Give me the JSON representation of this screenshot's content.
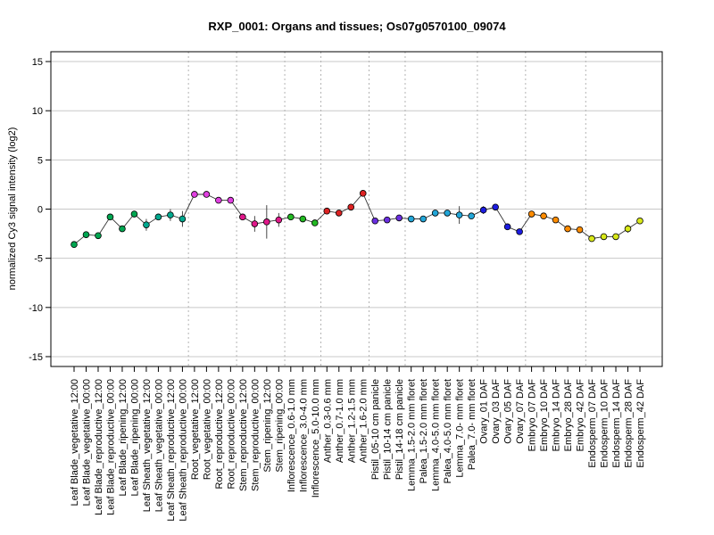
{
  "chart_data": {
    "type": "line",
    "title": "RXP_0001: Organs and tissues; Os07g0570100_09074",
    "xlabel": "",
    "ylabel": "normalized Cy3 signal intensity (log2)",
    "ylim": [
      -16,
      16
    ],
    "yticks": [
      15,
      10,
      5,
      0,
      -5,
      -10,
      -15
    ],
    "grid": "horizontal gridlines at y ticks; dotted vertical separators between tissue groups",
    "legend": "none",
    "categories": [
      "Leaf Blade_vegetative_12:00",
      "Leaf Blade_vegetative_00:00",
      "Leaf Blade_reproductive_12:00",
      "Leaf Blade_reproductive_00:00",
      "Leaf Blade_ripening_12:00",
      "Leaf Blade_ripening_00:00",
      "Leaf Sheath_vegetative_12:00",
      "Leaf Sheath_vegetative_00:00",
      "Leaf Sheath_reproductive_12:00",
      "Leaf Sheath_reproductive_00:00",
      "Root_vegetative_12:00",
      "Root_vegetative_00:00",
      "Root_reproductive_12:00",
      "Root_reproductive_00:00",
      "Stem_reproductive_12:00",
      "Stem_reproductive_00:00",
      "Stem_ripening_12:00",
      "Stem_ripening_00:00",
      "Inflorescence_0.6-1.0 mm",
      "Inflorescence_3.0-4.0 mm",
      "Inflorescence_5.0-10.0 mm",
      "Anther_0.3-0.6 mm",
      "Anther_0.7-1.0 mm",
      "Anther_1.2-1.5 mm",
      "Anther_1.6-2.0 mm",
      "Pistil_05-10 cm panicle",
      "Pistil_10-14 cm panicle",
      "Pistil_14-18 cm panicle",
      "Lemma_1.5-2.0 mm floret",
      "Palea_1.5-2.0 mm floret",
      "Lemma_4.0-5.0 mm floret",
      "Palea_4.0-5.0 mm floret",
      "Lemma_7.0- mm floret",
      "Palea_7.0- mm floret",
      "Ovary_01 DAF",
      "Ovary_03 DAF",
      "Ovary_05 DAF",
      "Ovary_07 DAF",
      "Embryo_07 DAF",
      "Embryo_10 DAF",
      "Embryo_14 DAF",
      "Embryo_28 DAF",
      "Embryo_42 DAF",
      "Endosperm_07 DAF",
      "Endosperm_10 DAF",
      "Endosperm_14 DAF",
      "Endosperm_28 DAF",
      "Endosperm_42 DAF"
    ],
    "values": [
      -3.6,
      -2.6,
      -2.7,
      -0.8,
      -2.0,
      -0.5,
      -1.6,
      -0.8,
      -0.6,
      -1.0,
      1.5,
      1.5,
      0.9,
      0.9,
      -0.8,
      -1.5,
      -1.3,
      -1.1,
      -0.8,
      -1.0,
      -1.4,
      -0.2,
      -0.4,
      0.2,
      1.6,
      -1.2,
      -1.1,
      -0.9,
      -1.0,
      -1.0,
      -0.4,
      -0.4,
      -0.6,
      -0.7,
      -0.1,
      0.2,
      -1.8,
      -2.3,
      -0.5,
      -0.7,
      -1.1,
      -2.0,
      -2.1,
      -3.0,
      -2.8,
      -2.8,
      -2.0,
      -1.2
    ],
    "error": [
      0.3,
      0.1,
      0.1,
      0.1,
      0.1,
      0.2,
      0.6,
      0.3,
      0.6,
      0.8,
      0.2,
      0.1,
      0.1,
      0.1,
      0.3,
      0.8,
      1.7,
      0.7,
      0.1,
      0.1,
      0.2,
      0.1,
      0.2,
      0.1,
      0.3,
      0.2,
      0.1,
      0.1,
      0.1,
      0.1,
      0.1,
      0.1,
      0.9,
      0.1,
      0.4,
      0.2,
      0.1,
      0.1,
      0.1,
      0.1,
      0.2,
      0.1,
      0.1,
      0.1,
      0.1,
      0.1,
      0.4,
      0.2
    ],
    "colors": [
      "#00a651",
      "#00a651",
      "#00a651",
      "#00a651",
      "#00a651",
      "#00a651",
      "#00a98f",
      "#00a98f",
      "#00a98f",
      "#00a98f",
      "#e040e0",
      "#e040e0",
      "#e040e0",
      "#e040e0",
      "#e0188a",
      "#e0188a",
      "#e0188a",
      "#e0188a",
      "#22b922",
      "#22b922",
      "#22b922",
      "#dd2222",
      "#dd2222",
      "#dd2222",
      "#dd2222",
      "#6a2ee0",
      "#6a2ee0",
      "#6a2ee0",
      "#22a6d8",
      "#22a6d8",
      "#22a6d8",
      "#22a6d8",
      "#22a6d8",
      "#22a6d8",
      "#1c1ce0",
      "#1c1ce0",
      "#1c1ce0",
      "#1c1ce0",
      "#ff8c00",
      "#ff8c00",
      "#ff8c00",
      "#ff8c00",
      "#ff8c00",
      "#d8e818",
      "#d8e818",
      "#d8e818",
      "#d8e818",
      "#d8e818"
    ],
    "group_separators_after_index": [
      9,
      13,
      17,
      20,
      24,
      27,
      33,
      37,
      42
    ]
  }
}
